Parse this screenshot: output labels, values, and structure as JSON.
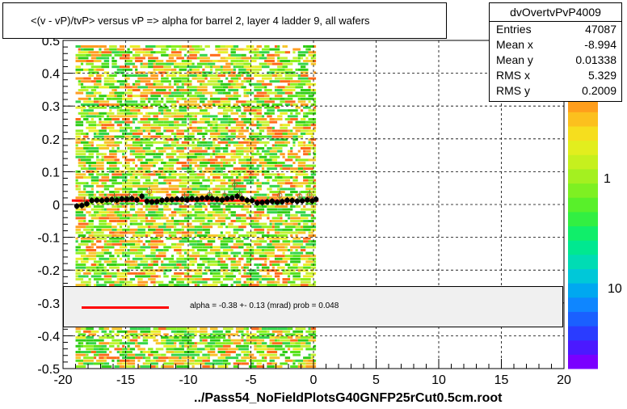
{
  "chart_data": {
    "type": "heatmap",
    "title": "<(v - vP)/tvP> versus   vP => alpha for barrel 2, layer 4 ladder 9, all wafers",
    "xlim": [
      -20,
      20
    ],
    "ylim": [
      -0.5,
      0.5
    ],
    "x_ticks": [
      "-20",
      "-15",
      "-10",
      "-5",
      "0",
      "5",
      "10",
      "15",
      "20"
    ],
    "y_ticks": [
      "-0.5",
      "-0.4",
      "-0.3",
      "-0.2",
      "-0.1",
      "0",
      "0.1",
      "0.2",
      "0.3",
      "0.4",
      "0.5"
    ],
    "grid": true,
    "occupied_x_range": [
      -19,
      0.2
    ],
    "colorbar_labels": [
      "1",
      "10"
    ],
    "profile_points_x": [
      -18.9,
      -18.5,
      -18.1,
      -17.7,
      -17.3,
      -16.9,
      -16.5,
      -16.1,
      -15.7,
      -15.3,
      -14.9,
      -14.5,
      -14.1,
      -13.7,
      -13.3,
      -12.9,
      -12.5,
      -12.1,
      -11.7,
      -11.3,
      -10.9,
      -10.5,
      -10.1,
      -9.7,
      -9.3,
      -8.9,
      -8.5,
      -8.1,
      -7.7,
      -7.3,
      -6.9,
      -6.5,
      -6.1,
      -5.7,
      -5.3,
      -4.9,
      -4.5,
      -4.1,
      -3.7,
      -3.3,
      -2.9,
      -2.5,
      -2.1,
      -1.7,
      -1.3,
      -0.9,
      -0.5,
      -0.1,
      0.2
    ],
    "profile_points_y": [
      -0.005,
      -0.003,
      0.002,
      0.012,
      0.013,
      0.012,
      0.014,
      0.015,
      0.013,
      0.017,
      0.016,
      0.018,
      0.014,
      0.025,
      0.01,
      0.008,
      0.009,
      0.013,
      0.015,
      0.015,
      0.017,
      0.016,
      0.014,
      0.018,
      0.016,
      0.019,
      0.02,
      0.018,
      0.016,
      0.014,
      0.018,
      0.02,
      0.025,
      0.018,
      0.013,
      0.012,
      0.005,
      0.006,
      0.008,
      0.01,
      0.007,
      0.009,
      0.013,
      0.012,
      0.01,
      0.011,
      0.014,
      0.011,
      0.016
    ],
    "secondary_points_x": [
      -18.3,
      -15.9,
      -14.7,
      -13.1,
      -10.3,
      -8.3,
      -7.1,
      -6.3,
      -5.9,
      -2.7,
      -1.1,
      -0.3
    ],
    "secondary_points_y": [
      0.008,
      0.02,
      0.025,
      0.04,
      0.022,
      0.03,
      0.028,
      0.06,
      0.03,
      0.028,
      0.026,
      0.03
    ],
    "fit_line_y": 0.012
  },
  "stats": {
    "name": "dvOvertvPvP4009",
    "rows": [
      {
        "key": "Entries",
        "value": "47087"
      },
      {
        "key": "Mean x",
        "value": "-8.994"
      },
      {
        "key": "Mean y",
        "value": "0.01338"
      },
      {
        "key": "RMS x",
        "value": "5.329"
      },
      {
        "key": "RMS y",
        "value": "0.2009"
      }
    ]
  },
  "fit": {
    "label": "alpha =   -0.38 +-  0.13 (mrad) prob = 0.048",
    "line_color": "#ff0000"
  },
  "footer": "../Pass54_NoFieldPlotsG40GNFP25rCut0.5cm.root"
}
